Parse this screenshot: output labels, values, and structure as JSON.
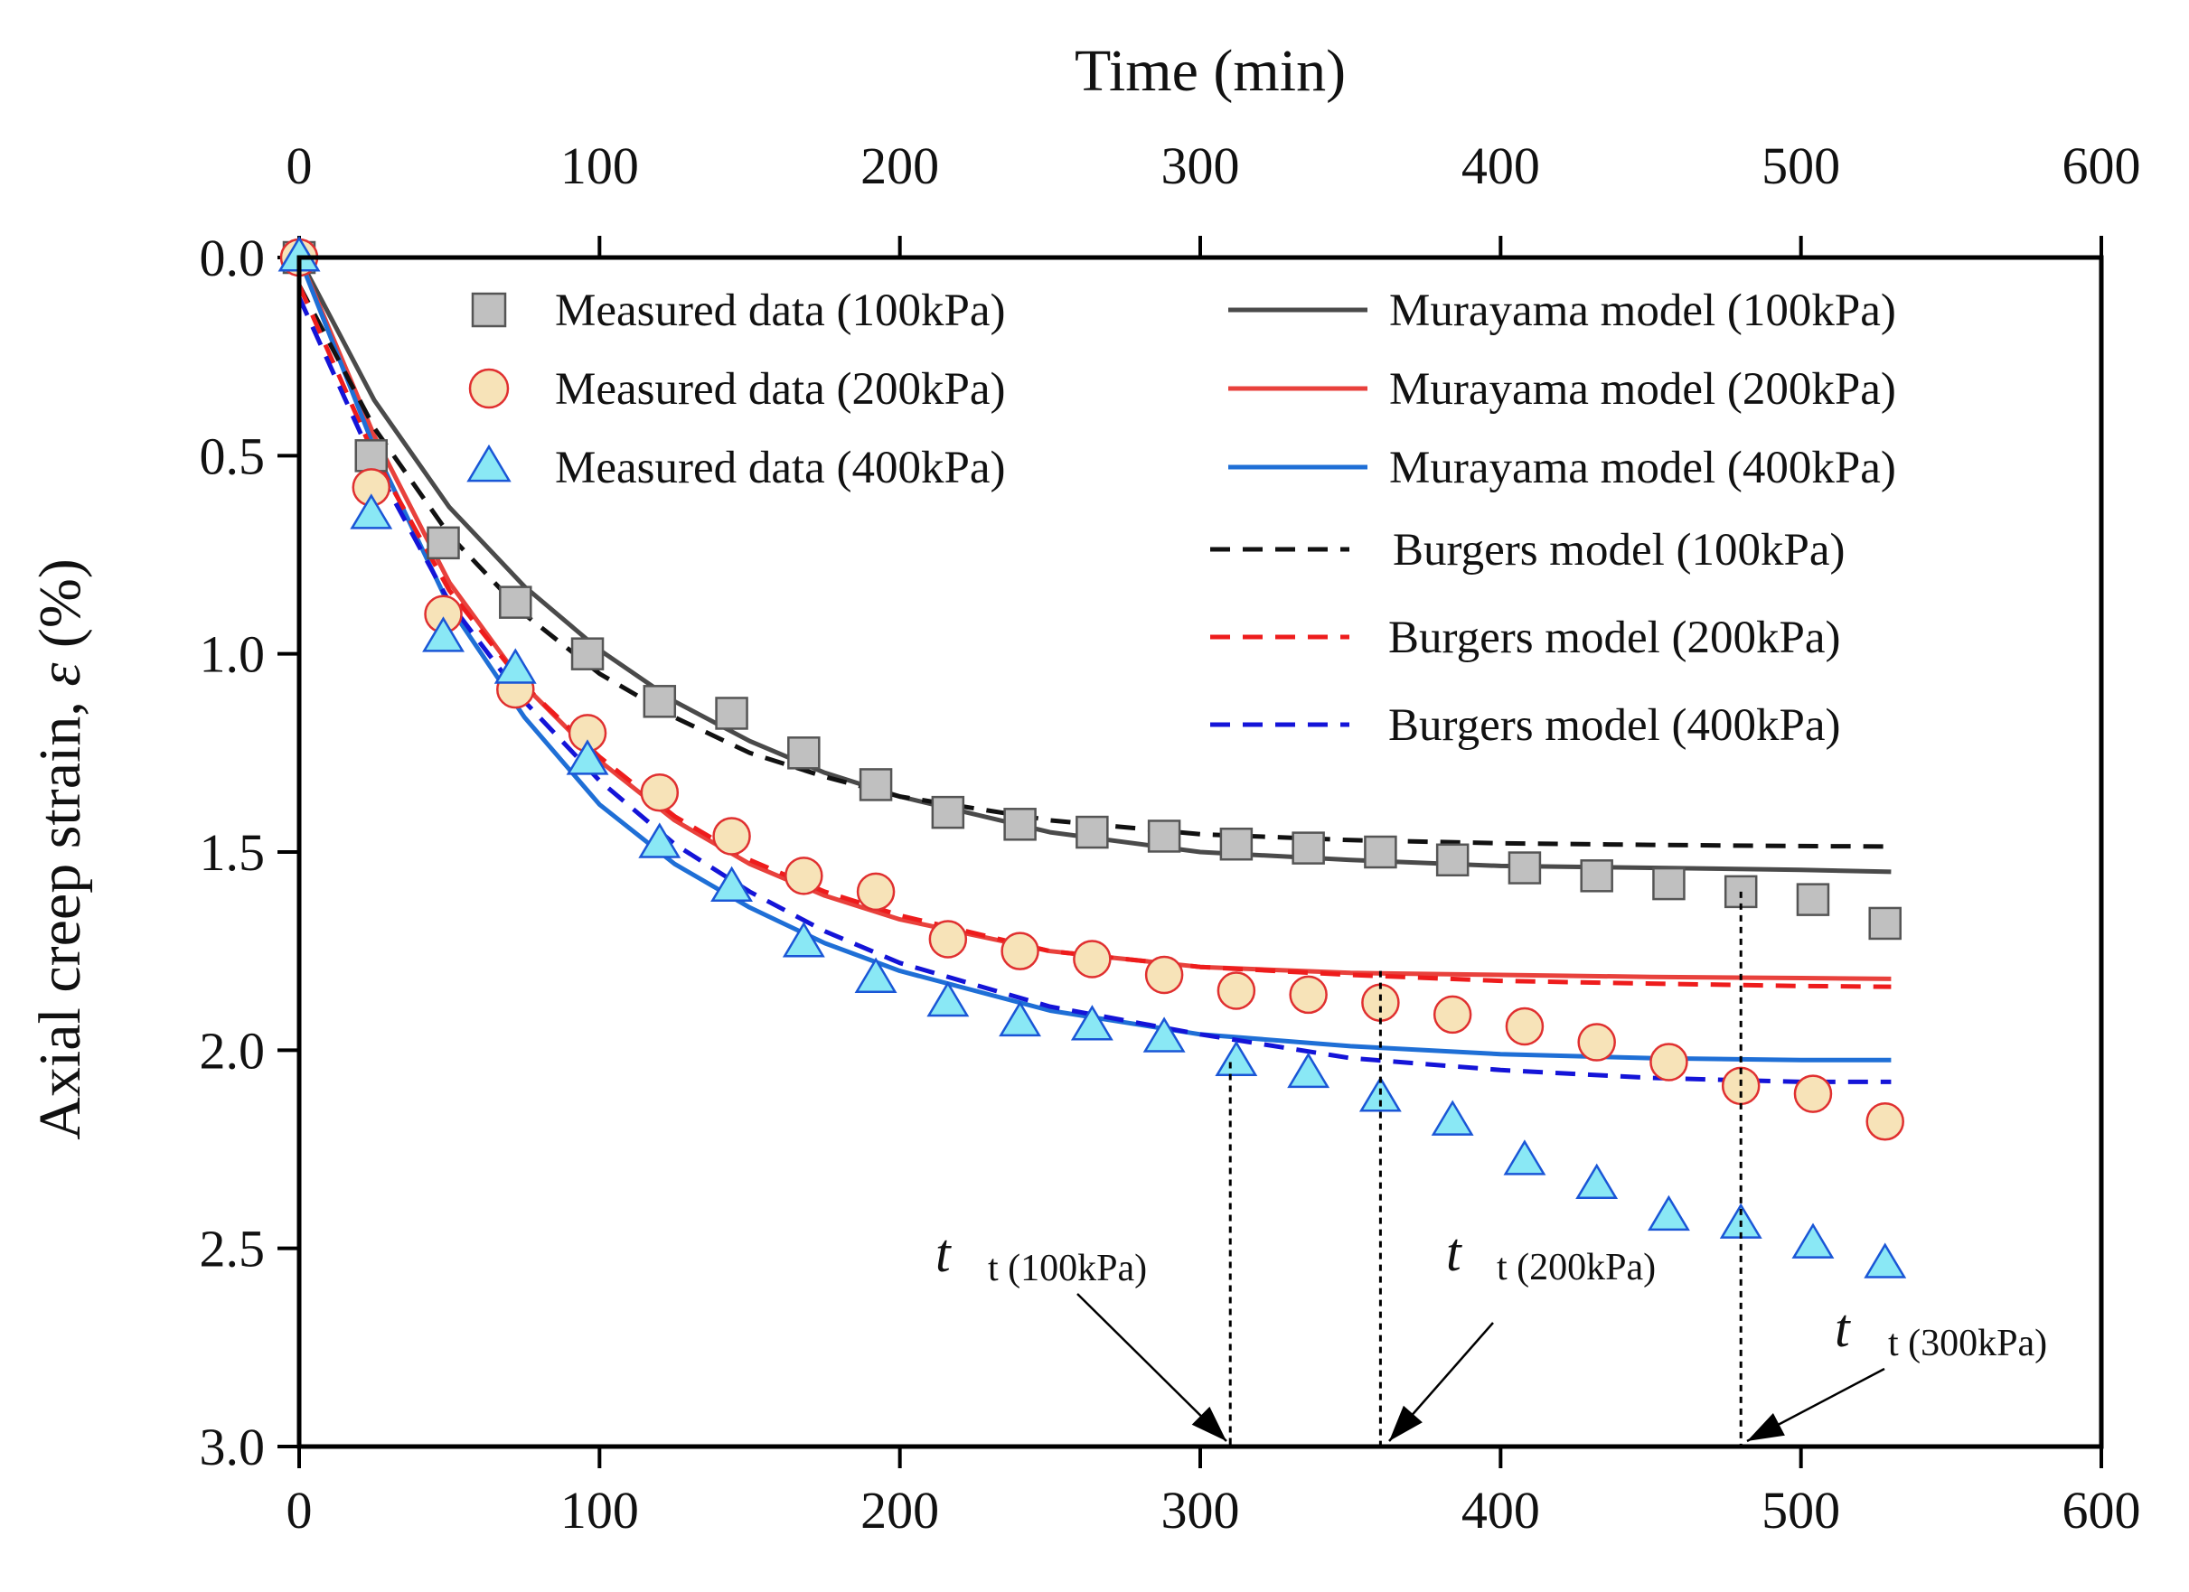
{
  "chart_data": {
    "type": "scatter+line",
    "title": "",
    "xlabel_top": "Time (min)",
    "ylabel_prefix": "Axial creep strain, ",
    "ylabel_symbol": "ε",
    "ylabel_suffix": " (%)",
    "xlim": [
      0,
      600
    ],
    "ylim": [
      0,
      3.0
    ],
    "y_inverted": true,
    "x_ticks": [
      0,
      100,
      200,
      300,
      400,
      500,
      600
    ],
    "x_tick_labels": [
      "0",
      "100",
      "200",
      "300",
      "400",
      "500",
      "600"
    ],
    "y_ticks": [
      0,
      0.5,
      1.0,
      1.5,
      2.0,
      2.5,
      3.0
    ],
    "y_tick_labels": [
      "0.0",
      "0.5",
      "1.0",
      "1.5",
      "2.0",
      "2.5",
      "3.0"
    ],
    "grid": false,
    "legend_position": "top-right",
    "scatter_series": [
      {
        "name": "Measured data (100kPa)",
        "marker": "square",
        "fill": "#c0c0c0",
        "stroke": "#555555",
        "x": [
          0,
          24,
          48,
          72,
          96,
          120,
          144,
          168,
          192,
          216,
          240,
          264,
          288,
          312,
          336,
          360,
          384,
          408,
          432,
          456,
          480,
          504,
          528
        ],
        "y": [
          0.0,
          0.5,
          0.72,
          0.87,
          1.0,
          1.12,
          1.15,
          1.25,
          1.33,
          1.4,
          1.43,
          1.45,
          1.46,
          1.48,
          1.49,
          1.5,
          1.52,
          1.54,
          1.56,
          1.58,
          1.6,
          1.62,
          1.68
        ]
      },
      {
        "name": "Measured data (200kPa)",
        "marker": "circle",
        "fill": "#f7e3b8",
        "stroke": "#e03030",
        "x": [
          0,
          24,
          48,
          72,
          96,
          120,
          144,
          168,
          192,
          216,
          240,
          264,
          288,
          312,
          336,
          360,
          384,
          408,
          432,
          456,
          480,
          504,
          528
        ],
        "y": [
          0.0,
          0.58,
          0.9,
          1.09,
          1.2,
          1.35,
          1.46,
          1.56,
          1.6,
          1.72,
          1.75,
          1.77,
          1.81,
          1.85,
          1.86,
          1.88,
          1.91,
          1.94,
          1.98,
          2.03,
          2.09,
          2.11,
          2.18
        ]
      },
      {
        "name": "Measured data (400kPa)",
        "marker": "triangle",
        "fill": "#8ae8f5",
        "stroke": "#1a56d6",
        "x": [
          0,
          24,
          48,
          72,
          96,
          120,
          144,
          168,
          192,
          216,
          240,
          264,
          288,
          312,
          336,
          360,
          384,
          408,
          432,
          456,
          480,
          504,
          528
        ],
        "y": [
          0.0,
          0.65,
          0.96,
          1.04,
          1.27,
          1.48,
          1.59,
          1.73,
          1.82,
          1.88,
          1.93,
          1.94,
          1.97,
          2.03,
          2.06,
          2.12,
          2.18,
          2.28,
          2.34,
          2.42,
          2.44,
          2.49,
          2.54
        ]
      }
    ],
    "line_series": [
      {
        "name": "Murayama model (100kPa)",
        "style": "solid",
        "color": "#4a4a4a",
        "x": [
          0,
          25,
          50,
          75,
          100,
          125,
          150,
          175,
          200,
          250,
          300,
          350,
          400,
          450,
          500,
          530
        ],
        "y": [
          0.0,
          0.36,
          0.63,
          0.83,
          0.99,
          1.12,
          1.22,
          1.3,
          1.36,
          1.45,
          1.5,
          1.52,
          1.535,
          1.54,
          1.545,
          1.55
        ]
      },
      {
        "name": "Murayama model (200kPa)",
        "style": "solid",
        "color": "#e8413c",
        "x": [
          0,
          25,
          50,
          75,
          100,
          125,
          150,
          175,
          200,
          250,
          300,
          350,
          400,
          450,
          500,
          530
        ],
        "y": [
          0.0,
          0.45,
          0.82,
          1.08,
          1.27,
          1.42,
          1.53,
          1.61,
          1.67,
          1.75,
          1.79,
          1.805,
          1.81,
          1.815,
          1.818,
          1.82
        ]
      },
      {
        "name": "Murayama model (400kPa)",
        "style": "solid",
        "color": "#1f6fd6",
        "x": [
          0,
          25,
          50,
          75,
          100,
          125,
          150,
          175,
          200,
          250,
          300,
          350,
          400,
          450,
          500,
          530
        ],
        "y": [
          0.0,
          0.48,
          0.88,
          1.16,
          1.38,
          1.53,
          1.64,
          1.73,
          1.8,
          1.9,
          1.96,
          1.99,
          2.01,
          2.02,
          2.025,
          2.025
        ]
      },
      {
        "name": "Burgers model (100kPa)",
        "style": "dashed",
        "color": "#111111",
        "x": [
          0,
          25,
          50,
          75,
          100,
          125,
          150,
          175,
          200,
          250,
          300,
          350,
          400,
          450,
          500,
          530
        ],
        "y": [
          0.07,
          0.43,
          0.7,
          0.9,
          1.05,
          1.16,
          1.25,
          1.31,
          1.36,
          1.42,
          1.455,
          1.47,
          1.478,
          1.482,
          1.485,
          1.486
        ]
      },
      {
        "name": "Burgers model (200kPa)",
        "style": "dashed",
        "color": "#ee1c1c",
        "x": [
          0,
          25,
          50,
          75,
          100,
          125,
          150,
          175,
          200,
          250,
          300,
          350,
          400,
          450,
          500,
          530
        ],
        "y": [
          0.07,
          0.5,
          0.84,
          1.08,
          1.26,
          1.41,
          1.52,
          1.6,
          1.66,
          1.75,
          1.79,
          1.81,
          1.825,
          1.832,
          1.838,
          1.84
        ]
      },
      {
        "name": "Burgers model (400kPa)",
        "style": "dashed",
        "color": "#1414d8",
        "x": [
          0,
          25,
          50,
          75,
          100,
          125,
          150,
          175,
          200,
          250,
          300,
          350,
          400,
          450,
          500,
          530
        ],
        "y": [
          0.1,
          0.52,
          0.87,
          1.12,
          1.32,
          1.48,
          1.6,
          1.7,
          1.78,
          1.89,
          1.96,
          2.02,
          2.05,
          2.07,
          2.08,
          2.08
        ]
      }
    ],
    "annotations": [
      {
        "main": "t",
        "sub": "t (100kPa)",
        "point_to_x": 310,
        "marker_y": 2.03
      },
      {
        "main": "t",
        "sub": "t (200kPa)",
        "point_to_x": 360,
        "marker_y": 1.8
      },
      {
        "main": "t",
        "sub": "t (300kPa)",
        "point_to_x": 480,
        "marker_y": 1.6
      }
    ]
  }
}
